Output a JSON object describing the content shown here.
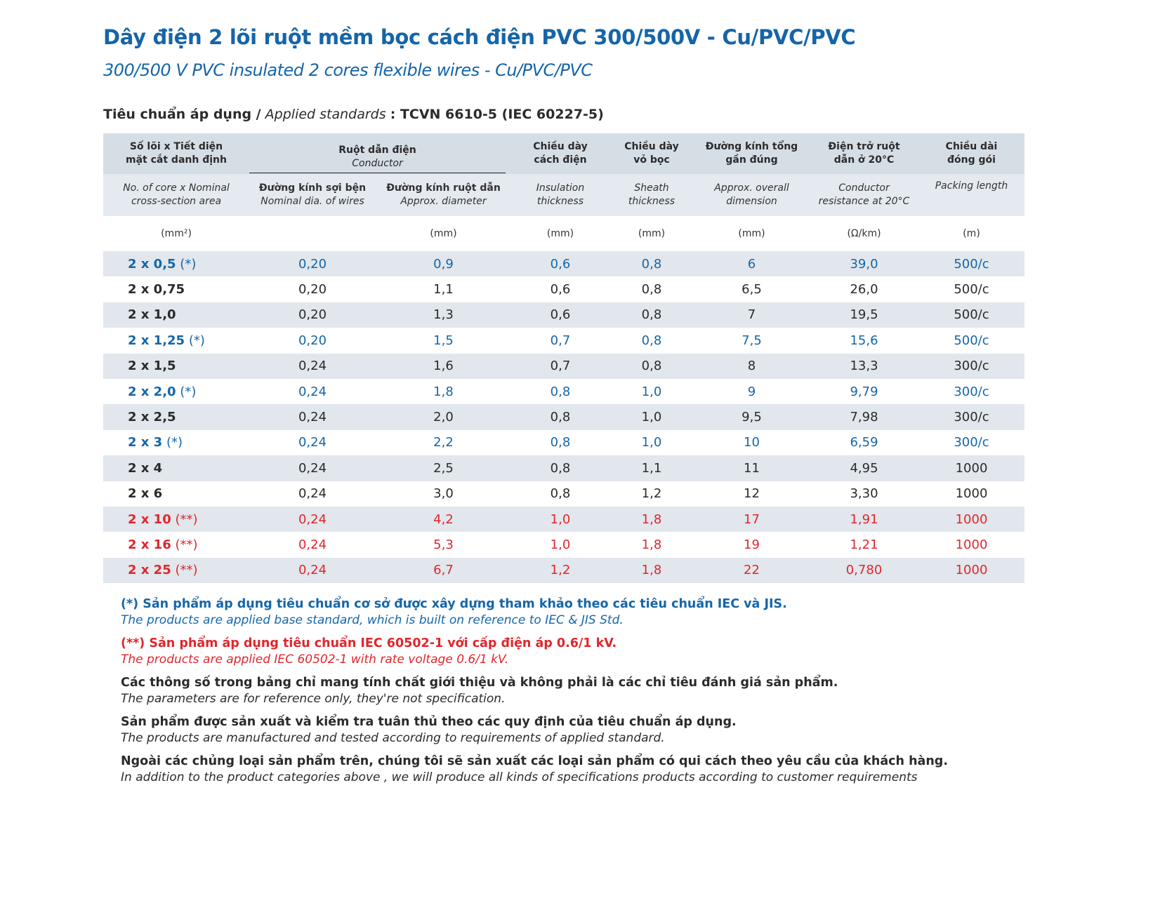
{
  "title": "Dây điện 2 lõi ruột mềm bọc cách điện PVC 300/500V - Cu/PVC/PVC",
  "subtitle": "300/500 V PVC insulated 2 cores flexible wires - Cu/PVC/PVC",
  "standard": {
    "label_vi": "Tiêu chuẩn áp dụng /",
    "label_en": "Applied standards",
    "value": ": TCVN 6610-5 (IEC 60227-5)"
  },
  "colors": {
    "blue": "#1666a8",
    "red": "#e0262d"
  },
  "headers": {
    "c1_vi": "Số lõi x Tiết diện mặt cắt danh định",
    "c1_en": "No. of core x Nominal cross-section area",
    "c1_unit": "(mm²)",
    "conductor_vi": "Ruột dẫn điện",
    "conductor_en": "Conductor",
    "c2_vi": "Đường kính sợi bện",
    "c2_en": "Nominal dia. of wires",
    "c3_vi": "Đường kính ruột dẫn",
    "c3_en": "Approx. diameter",
    "c3_unit": "(mm)",
    "c4_vi": "Chiều dày cách điện",
    "c4_en": "Insulation thickness",
    "c4_unit": "(mm)",
    "c5_vi": "Chiều dày vỏ bọc",
    "c5_en": "Sheath thickness",
    "c5_unit": "(mm)",
    "c6_vi": "Đường kính tổng gần đúng",
    "c6_en": "Approx. overall dimension",
    "c6_unit": "(mm)",
    "c7_vi": "Điện trở ruột dẫn ở 20°C",
    "c7_en": "Conductor resistance at 20°C",
    "c7_unit": "(Ω/km)",
    "c8_vi": "Chiều dài đóng gói",
    "c8_en": "Packing length",
    "c8_unit": "(m)"
  },
  "rows": [
    {
      "size": "2 x 0,5",
      "mark": "(*)",
      "type": "blue",
      "cells": [
        "0,20",
        "0,9",
        "0,6",
        "0,8",
        "6",
        "39,0",
        "500/c"
      ]
    },
    {
      "size": "2 x 0,75",
      "mark": "",
      "type": "black",
      "cells": [
        "0,20",
        "1,1",
        "0,6",
        "0,8",
        "6,5",
        "26,0",
        "500/c"
      ]
    },
    {
      "size": "2 x 1,0",
      "mark": "",
      "type": "black",
      "cells": [
        "0,20",
        "1,3",
        "0,6",
        "0,8",
        "7",
        "19,5",
        "500/c"
      ]
    },
    {
      "size": "2 x 1,25",
      "mark": "(*)",
      "type": "blue",
      "cells": [
        "0,20",
        "1,5",
        "0,7",
        "0,8",
        "7,5",
        "15,6",
        "500/c"
      ]
    },
    {
      "size": "2 x 1,5",
      "mark": "",
      "type": "black",
      "cells": [
        "0,24",
        "1,6",
        "0,7",
        "0,8",
        "8",
        "13,3",
        "300/c"
      ]
    },
    {
      "size": "2 x 2,0",
      "mark": "(*)",
      "type": "blue",
      "cells": [
        "0,24",
        "1,8",
        "0,8",
        "1,0",
        "9",
        "9,79",
        "300/c"
      ]
    },
    {
      "size": "2 x 2,5",
      "mark": "",
      "type": "black",
      "cells": [
        "0,24",
        "2,0",
        "0,8",
        "1,0",
        "9,5",
        "7,98",
        "300/c"
      ]
    },
    {
      "size": "2 x 3",
      "mark": "(*)",
      "type": "blue",
      "cells": [
        "0,24",
        "2,2",
        "0,8",
        "1,0",
        "10",
        "6,59",
        "300/c"
      ]
    },
    {
      "size": "2 x 4",
      "mark": "",
      "type": "black",
      "cells": [
        "0,24",
        "2,5",
        "0,8",
        "1,1",
        "11",
        "4,95",
        "1000"
      ]
    },
    {
      "size": "2 x 6",
      "mark": "",
      "type": "black",
      "cells": [
        "0,24",
        "3,0",
        "0,8",
        "1,2",
        "12",
        "3,30",
        "1000"
      ]
    },
    {
      "size": "2 x 10",
      "mark": "(**)",
      "type": "red",
      "cells": [
        "0,24",
        "4,2",
        "1,0",
        "1,8",
        "17",
        "1,91",
        "1000"
      ]
    },
    {
      "size": "2 x 16",
      "mark": "(**)",
      "type": "red",
      "cells": [
        "0,24",
        "5,3",
        "1,0",
        "1,8",
        "19",
        "1,21",
        "1000"
      ]
    },
    {
      "size": "2 x 25",
      "mark": "(**)",
      "type": "red",
      "cells": [
        "0,24",
        "6,7",
        "1,2",
        "1,8",
        "22",
        "0,780",
        "1000"
      ]
    }
  ],
  "notes": [
    {
      "type": "nb",
      "vi": "(*) Sản phẩm áp dụng tiêu chuẩn cơ sở được xây dựng tham khảo theo các tiêu chuẩn IEC và JIS.",
      "en": "The products are applied base standard, which is built on reference to IEC & JIS Std."
    },
    {
      "type": "nr",
      "vi": "(**) Sản phẩm áp dụng tiêu chuẩn IEC 60502-1 với cấp điện áp 0.6/1 kV.",
      "en": "The products are applied IEC 60502-1 with rate voltage 0.6/1 kV."
    },
    {
      "type": "nk",
      "vi": "Các thông số trong bảng chỉ mang tính chất giới thiệu và không phải là các chỉ tiêu đánh giá sản phẩm.",
      "en": "The parameters are for reference only, they're not specification."
    },
    {
      "type": "nk",
      "vi": "Sản phẩm được sản xuất và kiểm tra tuân thủ theo các quy định của tiêu chuẩn áp dụng.",
      "en": "The products are manufactured and tested according to requirements of applied standard."
    },
    {
      "type": "nk",
      "vi": "Ngoài các chủng loại sản phẩm trên, chúng tôi sẽ sản xuất các loại sản phẩm có qui cách theo yêu cầu của khách hàng.",
      "en": "In addition to the product categories above , we will produce all kinds of specifications products according to customer requirements"
    }
  ]
}
